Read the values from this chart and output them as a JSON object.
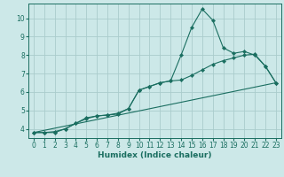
{
  "xlabel": "Humidex (Indice chaleur)",
  "ylabel": "",
  "background_color": "#cce8e8",
  "grid_color": "#aacccc",
  "line_color": "#1a6e60",
  "xlim": [
    -0.5,
    23.5
  ],
  "ylim": [
    3.5,
    10.8
  ],
  "xticks": [
    0,
    1,
    2,
    3,
    4,
    5,
    6,
    7,
    8,
    9,
    10,
    11,
    12,
    13,
    14,
    15,
    16,
    17,
    18,
    19,
    20,
    21,
    22,
    23
  ],
  "yticks": [
    4,
    5,
    6,
    7,
    8,
    9,
    10
  ],
  "curve1_x": [
    0,
    1,
    2,
    3,
    4,
    5,
    6,
    7,
    8,
    9,
    10,
    11,
    12,
    13,
    14,
    15,
    16,
    17,
    18,
    19,
    20,
    21,
    22,
    23
  ],
  "curve1_y": [
    3.8,
    3.8,
    3.8,
    4.0,
    4.3,
    4.6,
    4.7,
    4.75,
    4.8,
    5.1,
    6.1,
    6.3,
    6.5,
    6.6,
    8.0,
    9.5,
    10.5,
    9.9,
    8.4,
    8.1,
    8.2,
    8.0,
    7.4,
    6.5
  ],
  "curve2_x": [
    0,
    1,
    2,
    3,
    4,
    5,
    6,
    7,
    8,
    9,
    10,
    11,
    12,
    13,
    14,
    15,
    16,
    17,
    18,
    19,
    20,
    21,
    22,
    23
  ],
  "curve2_y": [
    3.8,
    3.8,
    3.85,
    4.0,
    4.3,
    4.55,
    4.7,
    4.75,
    4.85,
    5.1,
    6.1,
    6.3,
    6.5,
    6.6,
    6.65,
    6.9,
    7.2,
    7.5,
    7.7,
    7.85,
    8.0,
    8.05,
    7.4,
    6.5
  ],
  "curve3_x": [
    0,
    23
  ],
  "curve3_y": [
    3.8,
    6.5
  ]
}
